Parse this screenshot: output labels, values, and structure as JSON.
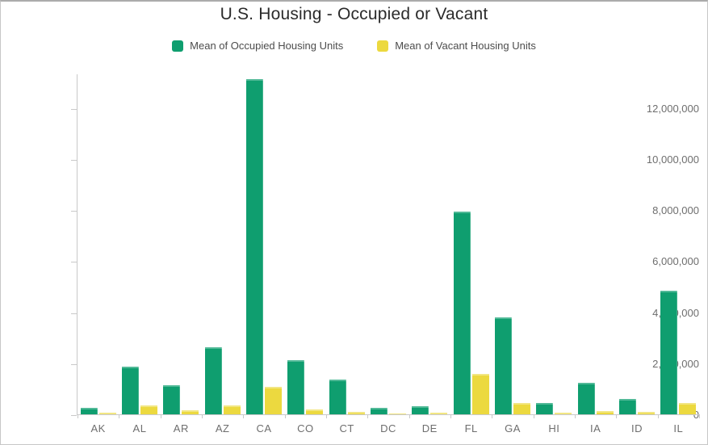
{
  "title": "U.S. Housing - Occupied or Vacant",
  "colors": {
    "occupied": "#0f9e6f",
    "vacant": "#ecd93f",
    "axis_line": "#c9c9c9",
    "axis_text": "#6e6e6e",
    "title_text": "#2b2b2b",
    "legend_text": "#4c4c4c",
    "frame_border": "#c7c7c7"
  },
  "chart_data": {
    "type": "bar",
    "title": "U.S. Housing - Occupied or Vacant",
    "xlabel": "",
    "ylabel": "",
    "grid": false,
    "legend_position": "top",
    "categories": [
      "AK",
      "AL",
      "AR",
      "AZ",
      "CA",
      "CO",
      "CT",
      "DC",
      "DE",
      "FL",
      "GA",
      "HI",
      "IA",
      "ID",
      "IL"
    ],
    "series": [
      {
        "name": "Mean of Occupied Housing Units",
        "color": "#0f9e6f",
        "values": [
          250000,
          1870000,
          1130000,
          2620000,
          13150000,
          2110000,
          1350000,
          270000,
          330000,
          7950000,
          3820000,
          440000,
          1250000,
          600000,
          4860000
        ]
      },
      {
        "name": "Mean of Vacant Housing Units",
        "color": "#ecd93f",
        "values": [
          70000,
          360000,
          170000,
          360000,
          1080000,
          200000,
          100000,
          30000,
          60000,
          1600000,
          450000,
          70000,
          130000,
          90000,
          460000
        ]
      }
    ],
    "ylim": [
      0,
      13350000
    ],
    "yticks": [
      0,
      2000000,
      4000000,
      6000000,
      8000000,
      10000000,
      12000000
    ],
    "ytick_labels": [
      "0",
      "2,000,000",
      "4,000,000",
      "6,000,000",
      "8,000,000",
      "10,000,000",
      "12,000,000"
    ]
  }
}
